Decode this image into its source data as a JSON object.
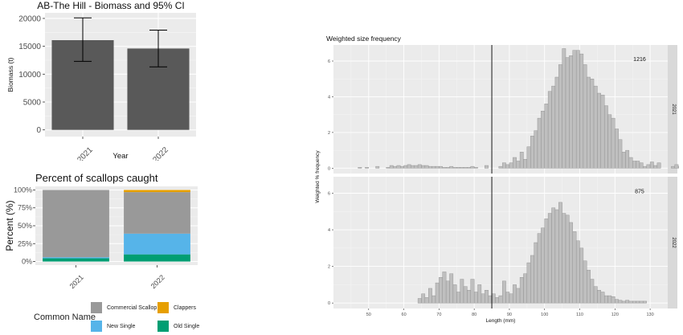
{
  "chart_data": [
    {
      "type": "bar",
      "title": "AB-The Hill  - Biomass and 95% CI",
      "xlabel": "Year",
      "ylabel": "Biomass (t)",
      "categories": [
        "2021",
        "2022"
      ],
      "values": [
        16100,
        14600
      ],
      "ci_lower": [
        12300,
        11300
      ],
      "ci_upper": [
        20100,
        17900
      ],
      "ylim": [
        -1200,
        21000
      ],
      "yticks": [
        0,
        5000,
        10000,
        15000,
        20000
      ],
      "ytick_labels": [
        "0",
        "5000",
        "10000",
        "15000",
        "20000"
      ],
      "bar_color": "#595959",
      "grid": true
    },
    {
      "type": "bar",
      "stacked": true,
      "title": "Percent of scallops caught",
      "xlabel": "",
      "ylabel": "Percent (%)",
      "categories": [
        "2021",
        "2022"
      ],
      "ylim": [
        -0.05,
        1.05
      ],
      "yticks": [
        0,
        0.25,
        0.5,
        0.75,
        1.0
      ],
      "ytick_labels": [
        "0%",
        "25%",
        "50%",
        "75%",
        "100%"
      ],
      "series": [
        {
          "name": "Old Single",
          "color": "#009E73",
          "values": [
            0.045,
            0.1
          ]
        },
        {
          "name": "New Single",
          "color": "#56B4E9",
          "values": [
            0.015,
            0.29
          ]
        },
        {
          "name": "Commercial Scallop",
          "color": "#999999",
          "values": [
            0.94,
            0.58
          ]
        },
        {
          "name": "Clappers",
          "color": "#E69F00",
          "values": [
            0.0,
            0.03
          ]
        }
      ],
      "legend_title": "Common Name",
      "legend_position": "bottom",
      "grid": true
    },
    {
      "type": "bar",
      "subtype": "histogram-facets",
      "title": "Weighted size frequency",
      "xlabel": "Length (mm)",
      "ylabel": "Weighted % frequency",
      "xlim": [
        40,
        135
      ],
      "xticks": [
        50,
        60,
        70,
        80,
        90,
        100,
        110,
        120,
        130
      ],
      "ylim": [
        -0.3,
        6.9
      ],
      "yticks": [
        0,
        2,
        4,
        6
      ],
      "bin_width": 1,
      "vline_x": 85,
      "bar_color": "#bfbfbf",
      "facets": [
        {
          "strip_label": "2021",
          "annotation": "1216",
          "bin_start": 45,
          "values": [
            0,
            0,
            0.05,
            0,
            0.05,
            0,
            0,
            0.1,
            0,
            0,
            0.05,
            0.15,
            0.1,
            0.15,
            0.1,
            0.15,
            0.2,
            0.15,
            0.15,
            0.2,
            0.15,
            0.15,
            0.1,
            0.1,
            0.1,
            0.1,
            0.05,
            0.05,
            0.1,
            0.05,
            0.05,
            0.05,
            0.05,
            0.05,
            0.1,
            0.05,
            0,
            0,
            0.15,
            0,
            0,
            0,
            0.1,
            0.3,
            0.2,
            0.3,
            0.6,
            0.4,
            0.9,
            0.5,
            1.2,
            1.8,
            2.1,
            2.8,
            3.2,
            3.6,
            4.3,
            4.6,
            5.1,
            5.8,
            6.7,
            6.2,
            6.3,
            6.6,
            6.6,
            6.4,
            5.8,
            5.1,
            5.0,
            4.6,
            4.2,
            4.1,
            3.5,
            3.0,
            2.8,
            2.2,
            1.6,
            0.9,
            1.0,
            0.6,
            0.4,
            0.4,
            0.3,
            0.1,
            0.2,
            0.35,
            0.15,
            0.3,
            0,
            0,
            0,
            0.1,
            0.2,
            0.1
          ]
        },
        {
          "strip_label": "2022",
          "annotation": "875",
          "bin_start": 45,
          "values": [
            0,
            0,
            0,
            0,
            0,
            0,
            0,
            0,
            0,
            0,
            0,
            0,
            0,
            0,
            0,
            0,
            0,
            0,
            0,
            0.25,
            0.5,
            0.3,
            0.8,
            0.4,
            1.1,
            1.4,
            1.7,
            1.2,
            1.6,
            1.0,
            0.6,
            1.3,
            0.9,
            0.7,
            1.3,
            0.6,
            1.0,
            0.5,
            0.7,
            0.4,
            0.5,
            0.3,
            0.4,
            1.2,
            0.6,
            0.5,
            1.0,
            0.8,
            1.4,
            1.6,
            2.2,
            2.6,
            3.3,
            3.8,
            4.1,
            4.6,
            4.9,
            5.2,
            5.1,
            5.5,
            4.9,
            4.8,
            4.4,
            3.9,
            3.4,
            3.0,
            2.3,
            1.8,
            1.3,
            0.9,
            0.7,
            0.6,
            0.4,
            0.4,
            0.35,
            0.2,
            0.15,
            0.1,
            0.15,
            0.1,
            0.1,
            0.1,
            0.1,
            0.1
          ]
        }
      ]
    }
  ]
}
